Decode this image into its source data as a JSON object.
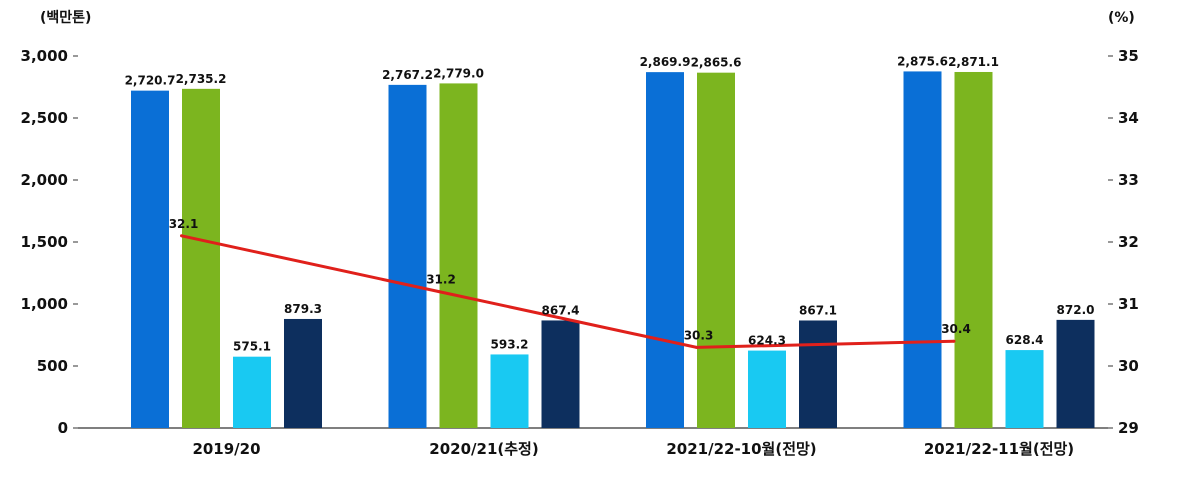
{
  "chart_data": {
    "type": "bar",
    "categories": [
      "2019/20",
      "2020/21(추정)",
      "2021/22-10월(전망)",
      "2021/22-11월(전망)"
    ],
    "series": [
      {
        "values": [
          2720.7,
          2767.2,
          2869.9,
          2875.6
        ],
        "color": "#0a6fd6",
        "value_labels": [
          "2,720.7",
          "2,767.2",
          "2,869.9",
          "2,875.6"
        ]
      },
      {
        "values": [
          2735.2,
          2779.0,
          2865.6,
          2871.1
        ],
        "color": "#7cb51f",
        "value_labels": [
          "2,735.2",
          "2,779.0",
          "2,865.6",
          "2,871.1"
        ]
      },
      {
        "values": [
          575.1,
          593.2,
          624.3,
          628.4
        ],
        "color": "#19c9f2",
        "value_labels": [
          "575.1",
          "593.2",
          "624.3",
          "628.4"
        ]
      },
      {
        "values": [
          879.3,
          867.4,
          867.1,
          872.0
        ],
        "color": "#0d2f5e",
        "value_labels": [
          "879.3",
          "867.4",
          "867.1",
          "872.0"
        ]
      }
    ],
    "line_series": {
      "values": [
        32.1,
        31.2,
        30.3,
        30.4
      ],
      "value_labels": [
        "32.1",
        "31.2",
        "30.3",
        "30.4"
      ],
      "color": "#e0201b",
      "axis": "right"
    },
    "left_axis": {
      "unit": "(백만톤)",
      "ylim": [
        0,
        3000
      ],
      "ticks": [
        0,
        500,
        1000,
        1500,
        2000,
        2500,
        3000
      ],
      "tick_labels": [
        "0",
        "500",
        "1,000",
        "1,500",
        "2,000",
        "2,500",
        "3,000"
      ]
    },
    "right_axis": {
      "unit": "(%)",
      "ylim": [
        29,
        35
      ],
      "ticks": [
        29,
        30,
        31,
        32,
        33,
        34,
        35
      ],
      "tick_labels": [
        "29",
        "30",
        "31",
        "32",
        "33",
        "34",
        "35"
      ]
    },
    "grid": false,
    "legend": "none"
  }
}
